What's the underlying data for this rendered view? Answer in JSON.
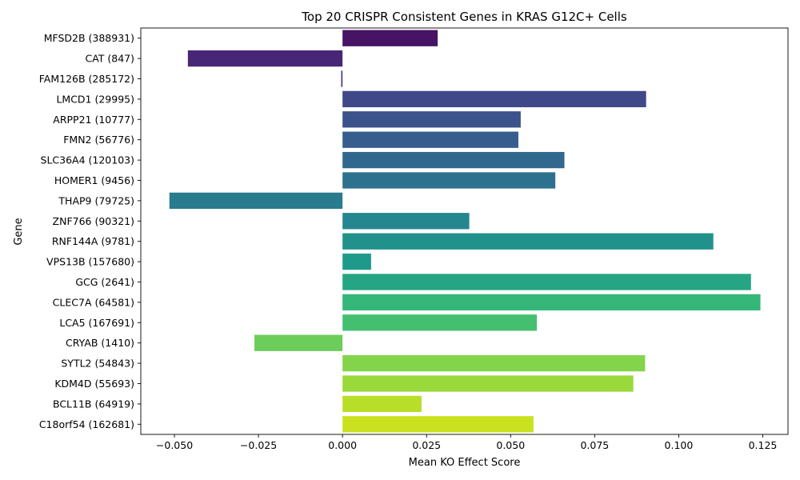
{
  "chart_data": {
    "type": "bar",
    "orientation": "horizontal",
    "title": "Top 20 CRISPR Consistent Genes in KRAS G12C+ Cells",
    "xlabel": "Mean KO Effect Score",
    "ylabel": "Gene",
    "xlim": [
      -0.06,
      0.1325
    ],
    "xticks": [
      -0.05,
      -0.025,
      0.0,
      0.025,
      0.05,
      0.075,
      0.1,
      0.125
    ],
    "xtick_labels": [
      "−0.050",
      "−0.025",
      "0.000",
      "0.025",
      "0.050",
      "0.075",
      "0.100",
      "0.125"
    ],
    "grid": false,
    "categories": [
      "MFSD2B (388931)",
      "CAT (847)",
      "FAM126B (285172)",
      "LMCD1 (29995)",
      "ARPP21 (10777)",
      "FMN2 (56776)",
      "SLC36A4 (120103)",
      "HOMER1 (9456)",
      "THAP9 (79725)",
      "ZNF766 (90321)",
      "RNF144A (9781)",
      "VPS13B (157680)",
      "GCG (2641)",
      "CLEC7A (64581)",
      "LCA5 (167691)",
      "CRYAB (1410)",
      "SYTL2 (54843)",
      "KDM4D (55693)",
      "BCL11B (64919)",
      "C18orf54 (162681)"
    ],
    "values": [
      0.0283,
      -0.046,
      -0.0004,
      0.0903,
      0.053,
      0.0523,
      0.066,
      0.0633,
      -0.0515,
      0.0377,
      0.1103,
      0.0085,
      0.1215,
      0.1243,
      0.0578,
      -0.0262,
      0.09,
      0.0865,
      0.0235,
      0.0568
    ],
    "colors": [
      "#471365",
      "#482677",
      "#453882",
      "#3f4889",
      "#3b528b",
      "#365d8d",
      "#31688e",
      "#2c728e",
      "#287c8e",
      "#24868e",
      "#21918c",
      "#1f9a8a",
      "#25a584",
      "#35b779",
      "#44bf70",
      "#6ccd5a",
      "#84d44b",
      "#9ad93b",
      "#b8de29",
      "#cae11f"
    ]
  }
}
